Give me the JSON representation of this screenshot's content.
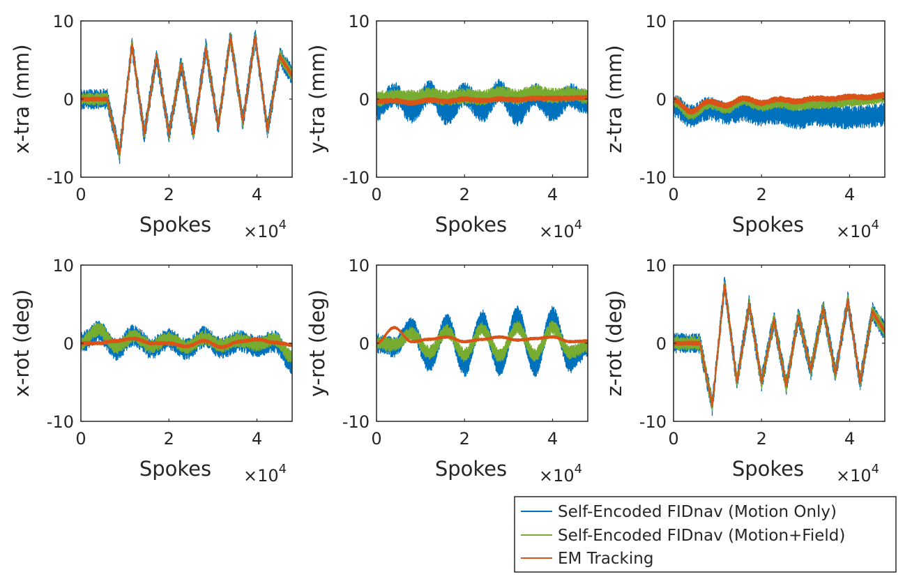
{
  "legend": {
    "items": [
      {
        "label": "Self-Encoded FIDnav (Motion Only)",
        "color": "#0072BD"
      },
      {
        "label": "Self-Encoded FIDnav (Motion+Field)",
        "color": "#77AC30"
      },
      {
        "label": "EM Tracking",
        "color": "#D95319"
      }
    ]
  },
  "chart_data": [
    {
      "type": "line",
      "xlabel": "Spokes",
      "x_multiplier_base": "10",
      "x_multiplier_exp": "4",
      "ylabel": "x-tra (mm)",
      "xlim": [
        0,
        48000
      ],
      "ylim": [
        -10,
        10
      ],
      "xticks": [
        0,
        20000,
        40000
      ],
      "xtick_labels": [
        "0",
        "2",
        "4"
      ],
      "yticks": [
        -10,
        0,
        10
      ],
      "ytick_labels": [
        "-10",
        "0",
        "10"
      ],
      "grid": false,
      "pattern": {
        "pre": 0,
        "start": 6000,
        "peaks": [
          -7,
          7,
          -4.5,
          5.5,
          -4.5,
          4.5,
          -4.5,
          6.5,
          -3.5,
          8,
          -3,
          8,
          -4,
          5.5,
          3
        ]
      },
      "series": [
        {
          "name": "Self-Encoded FIDnav (Motion Only)",
          "noise": 1.3,
          "offset": 0
        },
        {
          "name": "Self-Encoded FIDnav (Motion+Field)",
          "noise": 0.8,
          "offset": 0
        },
        {
          "name": "EM Tracking",
          "noise": 0.25,
          "offset": 0
        }
      ]
    },
    {
      "type": "line",
      "xlabel": "Spokes",
      "x_multiplier_base": "10",
      "x_multiplier_exp": "4",
      "ylabel": "y-tra (mm)",
      "xlim": [
        0,
        48000
      ],
      "ylim": [
        -10,
        10
      ],
      "xticks": [
        0,
        20000,
        40000
      ],
      "xtick_labels": [
        "0",
        "2",
        "4"
      ],
      "yticks": [
        -10,
        0,
        10
      ],
      "ytick_labels": [
        "-10",
        "0",
        "10"
      ],
      "grid": false,
      "series": [
        {
          "name": "Self-Encoded FIDnav (Motion Only)",
          "noise": 1.6,
          "wave": [
            -1.3,
            0.6,
            -1.5,
            0.8,
            -1.8,
            0.6,
            -1.4,
            1.0,
            -1.9,
            0.5,
            -1.4,
            0.4,
            -0.5
          ]
        },
        {
          "name": "Self-Encoded FIDnav (Motion+Field)",
          "noise": 1.0,
          "wave": [
            0,
            0.4,
            0.2,
            0.5,
            0.1,
            0.4,
            0.2,
            0.7,
            0.3,
            0.8,
            0.4,
            0.6,
            0.3
          ]
        },
        {
          "name": "EM Tracking",
          "noise": 0.3,
          "wave": [
            -0.3,
            -0.2,
            -0.5,
            -0.1,
            -0.3,
            0,
            -0.2,
            0,
            -0.1,
            0.1,
            0.1,
            0.1,
            0.2
          ]
        }
      ]
    },
    {
      "type": "line",
      "xlabel": "Spokes",
      "x_multiplier_base": "10",
      "x_multiplier_exp": "4",
      "ylabel": "z-tra (mm)",
      "xlim": [
        0,
        48000
      ],
      "ylim": [
        -10,
        10
      ],
      "xticks": [
        0,
        20000,
        40000
      ],
      "xtick_labels": [
        "0",
        "2",
        "4"
      ],
      "yticks": [
        -10,
        0,
        10
      ],
      "ytick_labels": [
        "-10",
        "0",
        "10"
      ],
      "grid": false,
      "series": [
        {
          "name": "Self-Encoded FIDnav (Motion Only)",
          "noise": 1.5,
          "wave": [
            -0.8,
            -2.2,
            -1.2,
            -1.8,
            -1.4,
            -2.0,
            -1.8,
            -2.4,
            -2.0,
            -2.2,
            -2.4,
            -2.2,
            -2.0
          ]
        },
        {
          "name": "Self-Encoded FIDnav (Motion+Field)",
          "noise": 0.7,
          "wave": [
            -0.3,
            -2.0,
            -0.6,
            -1.2,
            -0.2,
            -0.9,
            -0.5,
            -0.8,
            -0.6,
            -0.5,
            -0.3,
            -0.1,
            0.2
          ]
        },
        {
          "name": "EM Tracking",
          "noise": 0.35,
          "wave": [
            -0.1,
            -1.6,
            -0.3,
            -0.8,
            0.1,
            -0.5,
            0,
            -0.3,
            0.1,
            0.0,
            0.3,
            0.2,
            0.5
          ]
        }
      ]
    },
    {
      "type": "line",
      "xlabel": "Spokes",
      "x_multiplier_base": "10",
      "x_multiplier_exp": "4",
      "ylabel": "x-rot (deg)",
      "xlim": [
        0,
        48000
      ],
      "ylim": [
        -10,
        10
      ],
      "xticks": [
        0,
        20000,
        40000
      ],
      "xtick_labels": [
        "0",
        "2",
        "4"
      ],
      "yticks": [
        -10,
        0,
        10
      ],
      "ytick_labels": [
        "-10",
        "0",
        "10"
      ],
      "grid": false,
      "series": [
        {
          "name": "Self-Encoded FIDnav (Motion Only)",
          "noise": 1.4,
          "wave": [
            0,
            1.5,
            -0.8,
            1.0,
            -0.6,
            0.5,
            -0.8,
            0.8,
            -0.6,
            0.3,
            -0.4,
            0.2,
            -2.5
          ]
        },
        {
          "name": "Self-Encoded FIDnav (Motion+Field)",
          "noise": 0.9,
          "wave": [
            0,
            1.8,
            -0.5,
            0.9,
            -0.4,
            0.6,
            -0.5,
            0.7,
            -0.3,
            0.4,
            -0.2,
            0.5,
            -1.8
          ]
        },
        {
          "name": "EM Tracking",
          "noise": 0.2,
          "wave": [
            0,
            0,
            0.3,
            0.6,
            0,
            0,
            -0.4,
            0.3,
            -0.5,
            0.2,
            0.5,
            0.1,
            -0.2
          ]
        }
      ]
    },
    {
      "type": "line",
      "xlabel": "Spokes",
      "x_multiplier_base": "10",
      "x_multiplier_exp": "4",
      "ylabel": "y-rot (deg)",
      "xlim": [
        0,
        48000
      ],
      "ylim": [
        -10,
        10
      ],
      "xticks": [
        0,
        20000,
        40000
      ],
      "xtick_labels": [
        "0",
        "2",
        "4"
      ],
      "yticks": [
        -10,
        0,
        10
      ],
      "ytick_labels": [
        "-10",
        "0",
        "10"
      ],
      "grid": false,
      "series": [
        {
          "name": "Self-Encoded FIDnav (Motion Only)",
          "noise": 1.3,
          "wave": [
            0,
            -0.5,
            2.0,
            -2.5,
            2.5,
            -3.0,
            3.0,
            -3.0,
            3.5,
            -3.0,
            3.5,
            -2.5,
            -0.5
          ]
        },
        {
          "name": "Self-Encoded FIDnav (Motion+Field)",
          "noise": 0.9,
          "wave": [
            0,
            -0.2,
            1.2,
            -1.2,
            1.5,
            -1.5,
            1.8,
            -1.6,
            2.0,
            -1.5,
            2.0,
            -1.2,
            -0.3
          ]
        },
        {
          "name": "EM Tracking",
          "noise": 0.15,
          "wave": [
            0,
            2.0,
            0.2,
            0.5,
            0.8,
            0.2,
            0.5,
            0.8,
            0.4,
            0.6,
            0.8,
            0.2,
            0.3
          ]
        }
      ]
    },
    {
      "type": "line",
      "xlabel": "Spokes",
      "x_multiplier_base": "10",
      "x_multiplier_exp": "4",
      "ylabel": "z-rot (deg)",
      "xlim": [
        0,
        48000
      ],
      "ylim": [
        -10,
        10
      ],
      "xticks": [
        0,
        20000,
        40000
      ],
      "xtick_labels": [
        "0",
        "2",
        "4"
      ],
      "yticks": [
        -10,
        0,
        10
      ],
      "ytick_labels": [
        "-10",
        "0",
        "10"
      ],
      "grid": false,
      "pattern": {
        "pre": 0,
        "start": 6000,
        "peaks": [
          -8,
          7.5,
          -5,
          5,
          -5,
          3,
          -5.5,
          3.5,
          -3.5,
          4.5,
          -4,
          5.5,
          -5,
          4,
          1.5
        ]
      },
      "series": [
        {
          "name": "Self-Encoded FIDnav (Motion Only)",
          "noise": 1.3,
          "offset": 0
        },
        {
          "name": "Self-Encoded FIDnav (Motion+Field)",
          "noise": 0.9,
          "offset": 0
        },
        {
          "name": "EM Tracking",
          "noise": 0.25,
          "offset": 0
        }
      ]
    }
  ]
}
